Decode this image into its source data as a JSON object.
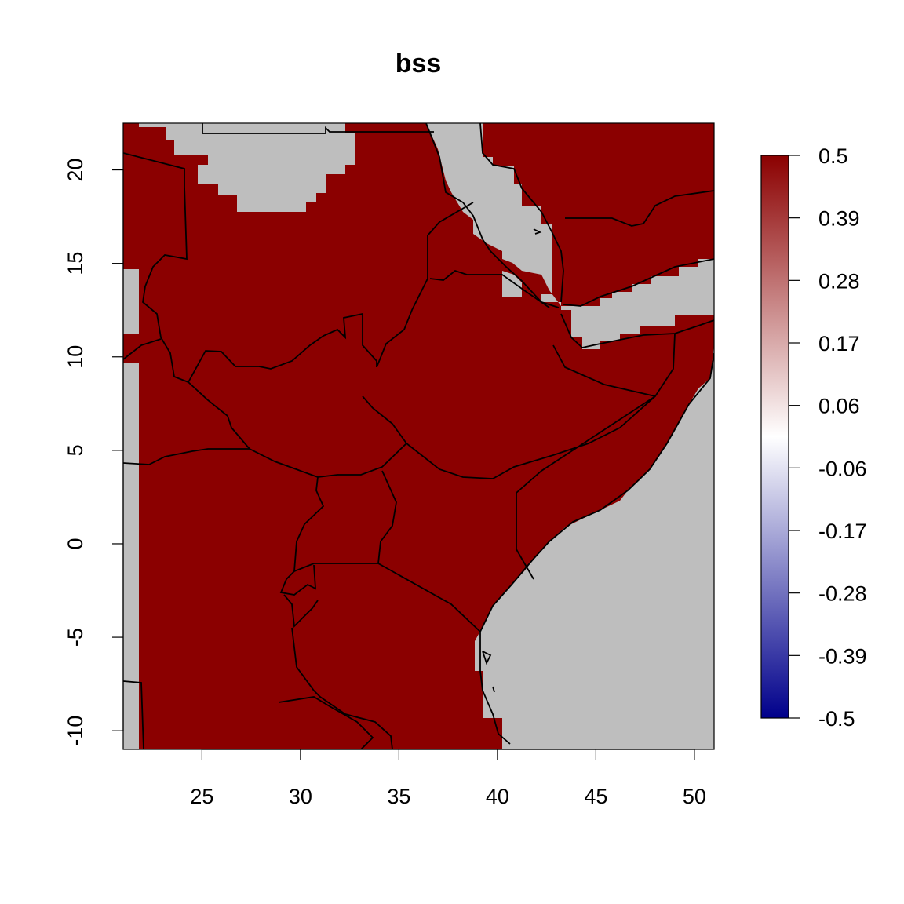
{
  "title": "bss",
  "map": {
    "xlim": [
      21,
      51
    ],
    "ylim": [
      -11,
      22.5
    ],
    "x_ticks": [
      25,
      30,
      35,
      40,
      45,
      50
    ],
    "y_ticks": [
      -10,
      -5,
      0,
      5,
      10,
      15,
      20
    ],
    "land_value": 0.5,
    "land_color": "#8B0000",
    "nodata_color": "#BEBEBE"
  },
  "legend": {
    "ticks": [
      "0.5",
      "0.39",
      "0.28",
      "0.17",
      "0.06",
      "-0.06",
      "-0.17",
      "-0.28",
      "-0.39",
      "-0.5"
    ],
    "range": [
      -0.5,
      0.5
    ],
    "colors": [
      "#00008B",
      "#FFFFFF",
      "#8B0000"
    ]
  }
}
